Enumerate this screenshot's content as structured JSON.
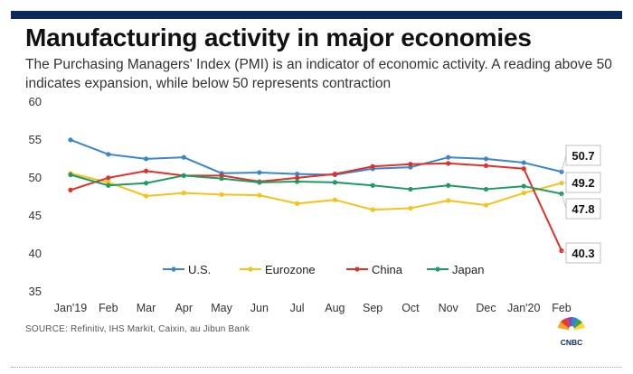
{
  "title": "Manufacturing activity in major economies",
  "subtitle": "The Purchasing Managers' Index (PMI) is an indicator of economic activity. A reading above 50 indicates expansion, while below 50 represents contraction",
  "source": "SOURCE: Refinitiv, IHS Markit, Caixin, au Jibun Bank",
  "logo_text": "CNBC",
  "chart_data": {
    "type": "line",
    "categories": [
      "Jan'19",
      "Feb",
      "Mar",
      "Apr",
      "May",
      "Jun",
      "Jul",
      "Aug",
      "Sep",
      "Oct",
      "Nov",
      "Dec",
      "Jan'20",
      "Feb"
    ],
    "ylim": [
      35,
      60
    ],
    "yticks": [
      35,
      40,
      45,
      50,
      55,
      60
    ],
    "grid": false,
    "legend_position": "bottom",
    "series": [
      {
        "name": "U.S.",
        "color": "#3a86c8",
        "values": [
          54.9,
          53.0,
          52.4,
          52.6,
          50.5,
          50.6,
          50.4,
          50.3,
          51.1,
          51.3,
          52.6,
          52.4,
          51.9,
          50.7
        ]
      },
      {
        "name": "Eurozone",
        "color": "#f6c21a",
        "values": [
          50.5,
          49.3,
          47.5,
          47.9,
          47.7,
          47.6,
          46.5,
          47.0,
          45.7,
          45.9,
          46.9,
          46.3,
          47.9,
          49.2
        ]
      },
      {
        "name": "China",
        "color": "#e0302a",
        "values": [
          48.3,
          49.9,
          50.8,
          50.2,
          50.2,
          49.4,
          49.9,
          50.4,
          51.4,
          51.7,
          51.8,
          51.5,
          51.1,
          40.3
        ]
      },
      {
        "name": "Japan",
        "color": "#1f9a62",
        "values": [
          50.3,
          48.9,
          49.2,
          50.2,
          49.8,
          49.3,
          49.4,
          49.3,
          48.9,
          48.4,
          48.9,
          48.4,
          48.8,
          47.8
        ]
      }
    ],
    "end_labels": [
      "50.7",
      "49.2",
      "47.8",
      "40.3"
    ]
  }
}
